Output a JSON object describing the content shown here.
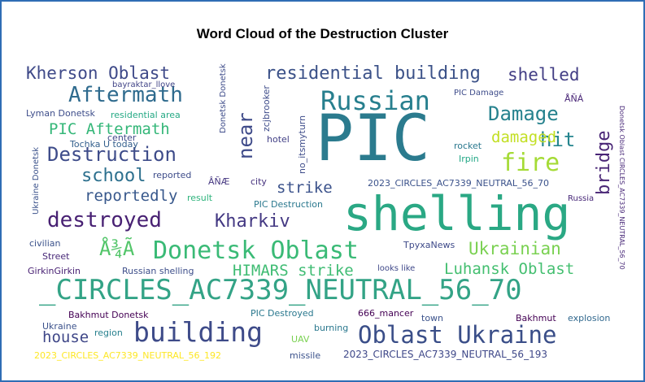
{
  "title": "Word Cloud of the Destruction Cluster",
  "colors": {
    "border": "#2f6db5",
    "background": "#ffffff"
  },
  "words": [
    "PIC",
    "shelling",
    "_CIRCLES_AC7339_NEUTRAL_56_70",
    "building",
    "Oblast Ukraine",
    "Russian",
    "Donetsk Oblast",
    "Aftermath",
    "destroyed",
    "Destruction",
    "residential building",
    "Kherson Oblast",
    "shelled",
    "Damage",
    "fire",
    "hit",
    "damaged",
    "Kharkiv",
    "PIC Aftermath",
    "school",
    "reportedly",
    "strike",
    "near",
    "bridge",
    "Å¾Ã",
    "HIMARS strike",
    "Ukrainian",
    "Luhansk Oblast",
    "house",
    "Ukraine",
    "region",
    "bayraktar_llove",
    "Lyman Donetsk",
    "residential area",
    "center",
    "Tochka U today",
    "reported",
    "ÂÑÆ",
    "result",
    "city",
    "PIC Destruction",
    "hotel",
    "zcjbrooker",
    "no_itsmyturn",
    "Donetsk Donetsk",
    "PIC Damage",
    "ÅÑÁ",
    "rocket",
    "Irpin",
    "2023_CIRCLES_AC7339_NEUTRAL_56_70",
    "Russia",
    "civilian",
    "Street",
    "GirkinGirkin",
    "Russian shelling",
    "ТруxaNews",
    "looks like",
    "Bakhmut Donetsk",
    "PIC Destroyed",
    "666_mancer",
    "town",
    "Bakhmut",
    "explosion",
    "burning",
    "UAV",
    "missile",
    "2023_CIRCLES_AC7339_NEUTRAL_56_192",
    "2023_CIRCLES_AC7339_NEUTRAL_56_193",
    "Donetsk Oblast CIRCLES_AC7339_NEUTRAL_56_70",
    "Ukraine Donetsk"
  ]
}
